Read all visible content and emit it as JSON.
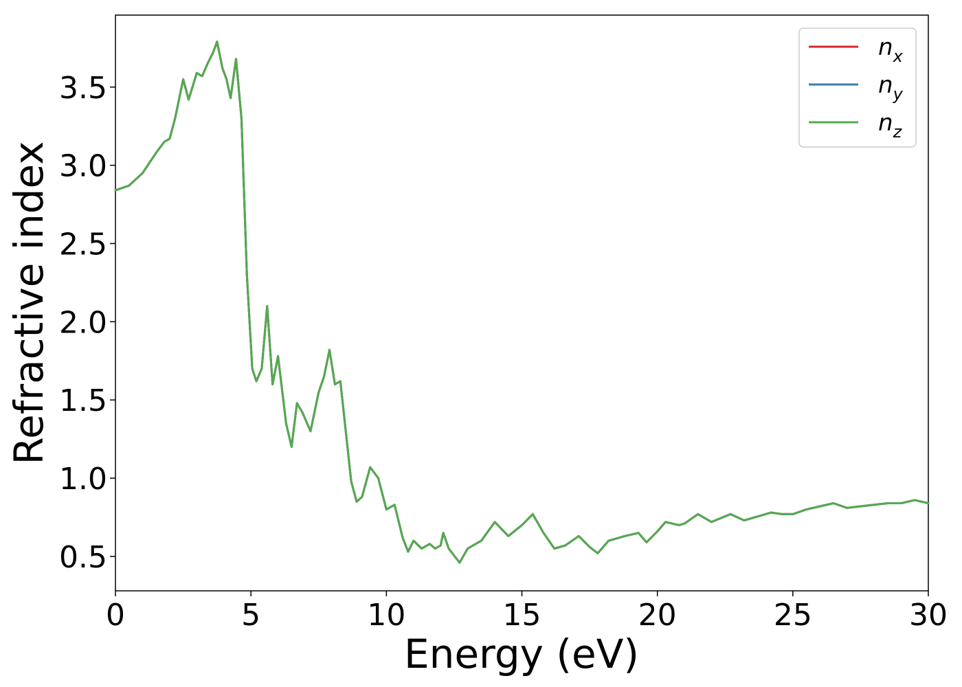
{
  "chart_data": {
    "type": "line",
    "xlabel": "Energy (eV)",
    "ylabel": "Refractive index",
    "xlim": [
      0,
      30
    ],
    "ylim": [
      0.28,
      3.96
    ],
    "x_ticks": [
      "0",
      "5",
      "10",
      "15",
      "20",
      "25",
      "30"
    ],
    "y_ticks": [
      "0.5",
      "1.0",
      "1.5",
      "2.0",
      "2.5",
      "3.0",
      "3.5"
    ],
    "legend_position": "top-right",
    "grid": false,
    "legend": [
      {
        "base": "n",
        "sub": "x",
        "color": "#d62728"
      },
      {
        "base": "n",
        "sub": "y",
        "color": "#3a7dab"
      },
      {
        "base": "n",
        "sub": "z",
        "color": "#55a94f"
      }
    ],
    "series": [
      {
        "name": "n_x",
        "color": "#d62728"
      },
      {
        "name": "n_y",
        "color": "#3a7dab"
      },
      {
        "name": "n_z",
        "color": "#55a94f"
      }
    ],
    "x": [
      0,
      0.5,
      1.0,
      1.5,
      1.8,
      2.0,
      2.2,
      2.5,
      2.7,
      3.0,
      3.2,
      3.4,
      3.6,
      3.75,
      3.95,
      4.1,
      4.25,
      4.45,
      4.65,
      4.85,
      5.05,
      5.2,
      5.4,
      5.6,
      5.8,
      6.0,
      6.3,
      6.5,
      6.7,
      6.9,
      7.2,
      7.5,
      7.7,
      7.9,
      8.1,
      8.3,
      8.5,
      8.7,
      8.9,
      9.1,
      9.4,
      9.7,
      10.0,
      10.3,
      10.6,
      10.8,
      11.0,
      11.3,
      11.6,
      11.8,
      12.0,
      12.1,
      12.3,
      12.7,
      13.0,
      13.5,
      14.0,
      14.5,
      15.0,
      15.4,
      15.8,
      16.2,
      16.6,
      17.1,
      17.5,
      17.8,
      18.2,
      18.8,
      19.3,
      19.6,
      20.0,
      20.3,
      20.8,
      21.0,
      21.5,
      22.0,
      22.7,
      23.2,
      23.8,
      24.2,
      24.6,
      25.0,
      25.5,
      26.0,
      26.5,
      27.0,
      27.5,
      28.0,
      28.5,
      29.0,
      29.5,
      30.0
    ],
    "values": [
      2.84,
      2.87,
      2.95,
      3.08,
      3.15,
      3.17,
      3.3,
      3.55,
      3.42,
      3.59,
      3.57,
      3.65,
      3.72,
      3.79,
      3.62,
      3.55,
      3.43,
      3.68,
      3.3,
      2.3,
      1.7,
      1.62,
      1.7,
      2.1,
      1.6,
      1.78,
      1.35,
      1.2,
      1.48,
      1.42,
      1.3,
      1.55,
      1.65,
      1.82,
      1.6,
      1.62,
      1.3,
      0.98,
      0.85,
      0.88,
      1.07,
      1.0,
      0.8,
      0.83,
      0.62,
      0.53,
      0.6,
      0.55,
      0.58,
      0.55,
      0.57,
      0.65,
      0.55,
      0.46,
      0.55,
      0.6,
      0.72,
      0.63,
      0.7,
      0.77,
      0.65,
      0.55,
      0.57,
      0.63,
      0.56,
      0.52,
      0.6,
      0.63,
      0.65,
      0.59,
      0.66,
      0.72,
      0.7,
      0.71,
      0.77,
      0.72,
      0.77,
      0.73,
      0.76,
      0.78,
      0.77,
      0.77,
      0.8,
      0.82,
      0.84,
      0.81,
      0.82,
      0.83,
      0.84,
      0.84,
      0.86,
      0.84
    ]
  }
}
